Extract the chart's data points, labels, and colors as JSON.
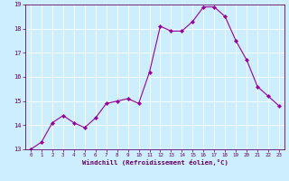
{
  "x": [
    0,
    1,
    2,
    3,
    4,
    5,
    6,
    7,
    8,
    9,
    10,
    11,
    12,
    13,
    14,
    15,
    16,
    17,
    18,
    19,
    20,
    21,
    22,
    23
  ],
  "y": [
    13.0,
    13.3,
    14.1,
    14.4,
    14.1,
    13.9,
    14.3,
    14.9,
    15.0,
    15.1,
    14.9,
    16.2,
    18.1,
    17.9,
    17.9,
    18.3,
    18.9,
    18.9,
    18.5,
    17.5,
    16.7,
    15.6,
    15.2,
    14.8
  ],
  "line_color": "#990099",
  "marker": "D",
  "marker_size": 2,
  "bg_color": "#cceeff",
  "grid_color": "#ffffff",
  "xlabel": "Windchill (Refroidissement éolien,°C)",
  "xlabel_color": "#660066",
  "tick_color": "#660066",
  "ylim": [
    13,
    19
  ],
  "xlim": [
    -0.5,
    23.5
  ],
  "yticks": [
    13,
    14,
    15,
    16,
    17,
    18,
    19
  ],
  "xticks": [
    0,
    1,
    2,
    3,
    4,
    5,
    6,
    7,
    8,
    9,
    10,
    11,
    12,
    13,
    14,
    15,
    16,
    17,
    18,
    19,
    20,
    21,
    22,
    23
  ]
}
